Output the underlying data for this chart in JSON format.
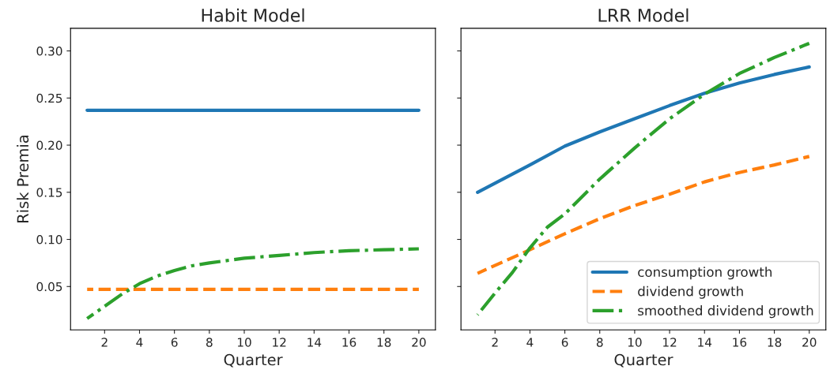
{
  "chart_data": [
    {
      "type": "line",
      "title": "Habit Model",
      "xlabel": "Quarter",
      "ylabel": "Risk Premia",
      "xlim": [
        0.05,
        20.95
      ],
      "xticks": [
        2,
        4,
        6,
        8,
        10,
        12,
        14,
        16,
        18,
        20
      ],
      "ylim": [
        0.004,
        0.324
      ],
      "yticks": [
        {
          "value": 0.05,
          "label": "0.05"
        },
        {
          "value": 0.1,
          "label": "0.10"
        },
        {
          "value": 0.15,
          "label": "0.15"
        },
        {
          "value": 0.2,
          "label": "0.20"
        },
        {
          "value": 0.25,
          "label": "0.25"
        },
        {
          "value": 0.3,
          "label": "0.30"
        }
      ],
      "grid": false,
      "legend": false,
      "series": [
        {
          "color": "#1f77b4",
          "line_style": "solid",
          "x": [
            1,
            20
          ],
          "values": [
            0.237,
            0.237
          ]
        },
        {
          "color": "#ff7f0e",
          "line_style": "dashed",
          "x": [
            1,
            20
          ],
          "values": [
            0.047,
            0.047
          ]
        },
        {
          "color": "#2ca02c",
          "line_style": "dashdot",
          "x": [
            1,
            2,
            3,
            4,
            5,
            6,
            7,
            8,
            10,
            12,
            14,
            16,
            18,
            20
          ],
          "values": [
            0.016,
            0.029,
            0.042,
            0.053,
            0.061,
            0.067,
            0.072,
            0.075,
            0.08,
            0.083,
            0.086,
            0.088,
            0.089,
            0.09
          ]
        }
      ]
    },
    {
      "type": "line",
      "title": "LRR Model",
      "xlabel": "Quarter",
      "xlim": [
        0.05,
        20.95
      ],
      "xticks": [
        2,
        4,
        6,
        8,
        10,
        12,
        14,
        16,
        18,
        20
      ],
      "ylim": [
        0.004,
        0.324
      ],
      "yticks": [
        {
          "value": 0.05,
          "label": null
        },
        {
          "value": 0.1,
          "label": null
        },
        {
          "value": 0.15,
          "label": null
        },
        {
          "value": 0.2,
          "label": null
        },
        {
          "value": 0.25,
          "label": null
        },
        {
          "value": 0.3,
          "label": null
        }
      ],
      "tick_labels": "x",
      "grid": false,
      "legend": "bottom right",
      "series": [
        {
          "name": "consumption growth",
          "color": "#1f77b4",
          "line_style": "solid",
          "x": [
            1,
            4,
            6,
            8,
            10,
            12,
            14,
            16,
            18,
            20
          ],
          "values": [
            0.15,
            0.179,
            0.199,
            0.214,
            0.228,
            0.242,
            0.255,
            0.266,
            0.275,
            0.283
          ]
        },
        {
          "name": "dividend growth",
          "color": "#ff7f0e",
          "line_style": "dashed",
          "x": [
            1,
            4,
            6,
            8,
            10,
            12,
            14,
            16,
            18,
            20
          ],
          "values": [
            0.064,
            0.089,
            0.106,
            0.122,
            0.136,
            0.148,
            0.161,
            0.171,
            0.179,
            0.188
          ]
        },
        {
          "name": "smoothed dividend growth",
          "color": "#2ca02c",
          "line_style": "dashdot",
          "x": [
            1,
            2,
            3,
            4,
            5,
            6,
            8,
            10,
            12,
            14,
            16,
            18,
            20
          ],
          "values": [
            0.02,
            0.043,
            0.065,
            0.091,
            0.113,
            0.127,
            0.164,
            0.197,
            0.228,
            0.254,
            0.276,
            0.293,
            0.308
          ]
        }
      ]
    }
  ]
}
